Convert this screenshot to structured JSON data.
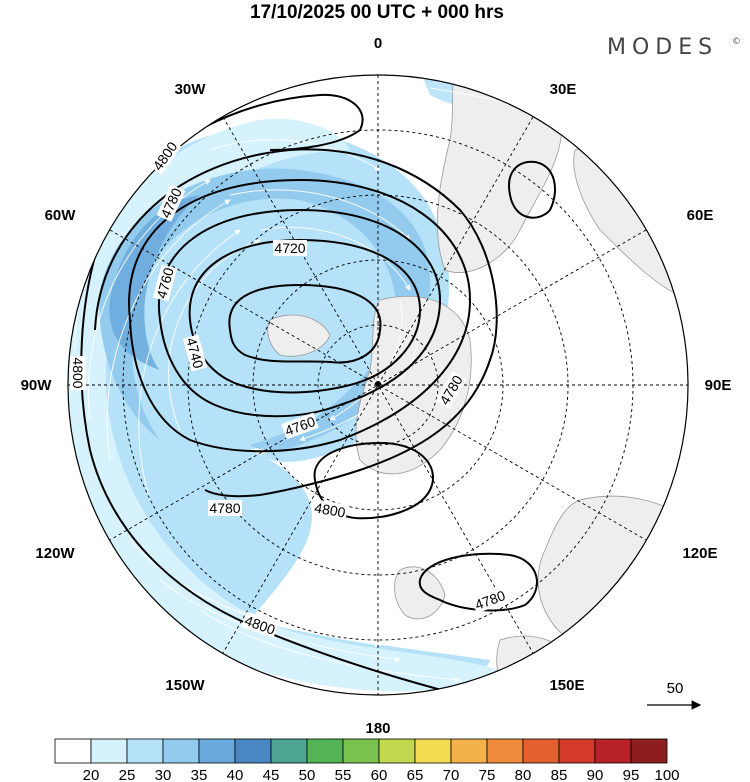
{
  "title": "17/10/2025  00 UTC  + 000 hrs",
  "brand": "MODES",
  "brand_mark": "©",
  "longitude_labels": {
    "lon_0": "0",
    "lon_30e": "30E",
    "lon_60e": "60E",
    "lon_90e": "90E",
    "lon_120e": "120E",
    "lon_150e": "150E",
    "lon_180": "180",
    "lon_150w": "150W",
    "lon_120w": "120W",
    "lon_90w": "90W",
    "lon_60w": "60W",
    "lon_30w": "30W"
  },
  "contour_labels": {
    "c4800_nw": "4800",
    "c4780_w": "4780",
    "c4760_w": "4760",
    "c4740": "4740",
    "c4720": "4720",
    "c4760_s": "4760",
    "c4780_e": "4780",
    "c4800_w": "4800",
    "c4780_sw": "4780",
    "c4800_s": "4800",
    "c4780_se": "4780",
    "c4800_far": "4800"
  },
  "wind_reference": {
    "label": "50",
    "units": ""
  },
  "colorbar": {
    "labels": [
      "20",
      "25",
      "30",
      "35",
      "40",
      "45",
      "50",
      "55",
      "60",
      "65",
      "70",
      "75",
      "80",
      "85",
      "90",
      "95",
      "100"
    ],
    "colors": [
      "#ffffff",
      "#d6f2fd",
      "#b5e2f8",
      "#92cbee",
      "#6aa9dc",
      "#4a88c4",
      "#4ea591",
      "#52b454",
      "#7ac14e",
      "#c2d84e",
      "#f3dc52",
      "#f4b24a",
      "#ef8a3a",
      "#e4602f",
      "#d43a2c",
      "#b8232a",
      "#8e1d1f"
    ]
  },
  "colors": {
    "land": "#eeeeee",
    "ocean": "#ffffff",
    "contour": "#000000",
    "wind_arrow": "#ffffff"
  }
}
